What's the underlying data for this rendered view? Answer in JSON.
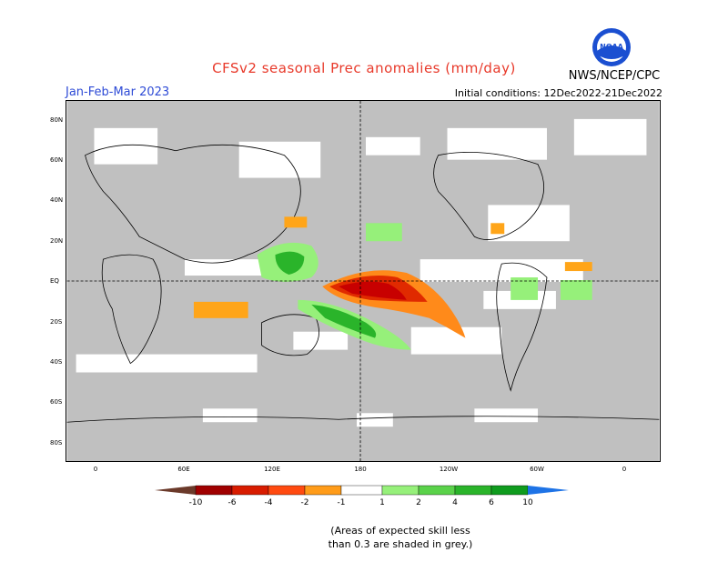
{
  "header": {
    "title": "CFSv2 seasonal Prec anomalies (mm/day)",
    "period": "Jan-Feb-Mar 2023",
    "initial_conditions": "Initial conditions: 12Dec2022-21Dec2022",
    "agency": "NWS/NCEP/CPC",
    "logo_text": "NOAA",
    "logo_icon": "noaa-logo"
  },
  "map": {
    "lat_labels": [
      "80N",
      "60N",
      "40N",
      "20N",
      "EQ",
      "20S",
      "40S",
      "60S",
      "80S"
    ],
    "lon_labels": [
      "0",
      "60E",
      "120E",
      "180",
      "120W",
      "60W",
      "0"
    ],
    "colors": {
      "skill_mask_grey": "#c0c0c0",
      "land_line": "#000000",
      "dry_strong": "#c80000",
      "dry_mid": "#e02a00",
      "dry_light": "#ff6a1a",
      "dry_weak": "#ffa519",
      "wet_weak": "#96f07a",
      "wet_mid": "#5ad24a",
      "wet_strong": "#2ab42a"
    }
  },
  "colorbar": {
    "labels": [
      "-10",
      "-6",
      "-4",
      "-2",
      "-1",
      "1",
      "2",
      "4",
      "6",
      "10"
    ],
    "colors": [
      "#6b3a2a",
      "#a00000",
      "#d81c00",
      "#ff4a10",
      "#ff9c19",
      "#ffffff",
      "#96f07a",
      "#5ad24a",
      "#2ab42a",
      "#0f9c1e",
      "#1e73e6"
    ]
  },
  "note": {
    "line1": "(Areas of expected skill less",
    "line2": "than 0.3 are shaded in grey.)"
  }
}
